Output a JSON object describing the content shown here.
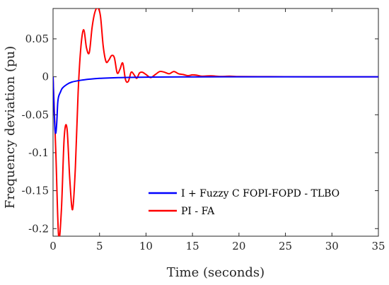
{
  "chart_data": {
    "type": "line",
    "title": "",
    "xlabel": "Time (seconds)",
    "ylabel": "Frequency deviation (pu)",
    "xlim": [
      0,
      35
    ],
    "ylim": [
      -0.21,
      0.09
    ],
    "xticks": [
      0,
      5,
      10,
      15,
      20,
      25,
      30,
      35
    ],
    "xtick_labels": [
      "0",
      "5",
      "10",
      "15",
      "20",
      "25",
      "30",
      "35"
    ],
    "yticks": [
      0.05,
      0,
      -0.05,
      -0.1,
      -0.15,
      -0.2
    ],
    "ytick_labels": [
      "0.05",
      "0",
      "-0.05",
      "-0.1",
      "-0.15",
      "-0.2"
    ],
    "grid": false,
    "legend_position": "bottom-right",
    "series": [
      {
        "name": "I + Fuzzy C FOPI-FOPD - TLBO",
        "color": "#0000ff",
        "x": [
          0,
          0.1,
          0.2,
          0.3,
          0.4,
          0.5,
          0.6,
          0.8,
          1.0,
          1.5,
          2,
          3,
          4,
          5,
          6,
          7,
          8,
          10,
          12,
          15,
          20,
          25,
          30,
          35
        ],
        "y": [
          0,
          -0.04,
          -0.068,
          -0.074,
          -0.06,
          -0.035,
          -0.026,
          -0.02,
          -0.015,
          -0.01,
          -0.007,
          -0.0045,
          -0.003,
          -0.002,
          -0.0015,
          -0.0011,
          -0.0008,
          -0.0005,
          -0.0003,
          -0.0001,
          0,
          0,
          0,
          0
        ]
      },
      {
        "name": "PI - FA",
        "color": "#ff0000",
        "x": [
          0,
          0.3,
          0.6,
          0.9,
          1.2,
          1.5,
          1.8,
          2.1,
          2.4,
          2.7,
          3.0,
          3.3,
          3.6,
          3.9,
          4.2,
          4.5,
          4.8,
          5.1,
          5.4,
          5.7,
          6.0,
          6.3,
          6.6,
          6.9,
          7.2,
          7.5,
          7.8,
          8.1,
          8.4,
          8.7,
          9.0,
          9.3,
          9.6,
          10.0,
          10.5,
          11.0,
          11.5,
          12.0,
          12.5,
          13.0,
          13.5,
          14.0,
          14.5,
          15.0,
          15.5,
          16.0,
          17.0,
          18.0,
          19.0,
          20.0,
          22.0,
          25.0,
          30.0,
          35.0
        ],
        "y": [
          0,
          -0.1,
          -0.21,
          -0.175,
          -0.08,
          -0.068,
          -0.135,
          -0.175,
          -0.12,
          -0.02,
          0.04,
          0.062,
          0.038,
          0.032,
          0.065,
          0.085,
          0.091,
          0.08,
          0.04,
          0.02,
          0.022,
          0.028,
          0.025,
          0.005,
          0.01,
          0.018,
          -0.004,
          -0.006,
          0.006,
          0.003,
          -0.002,
          0.005,
          0.006,
          0.003,
          -0.001,
          0.003,
          0.007,
          0.006,
          0.004,
          0.007,
          0.004,
          0.003,
          0.0015,
          0.0025,
          0.002,
          0.0008,
          0.0012,
          0.0004,
          0.0008,
          0.0003,
          0.0002,
          0.0001,
          0,
          0
        ]
      }
    ]
  }
}
